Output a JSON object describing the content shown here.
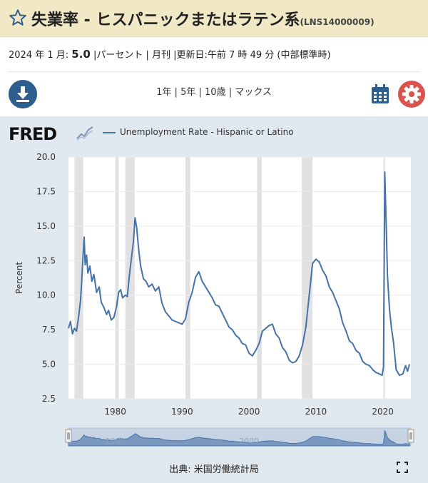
{
  "header": {
    "title": "失業率 - ヒスパニックまたはラテン系",
    "series_code": "(LNS14000009)"
  },
  "meta": {
    "date": "2024 年 1 月: ",
    "value": "5.0",
    "units": " |パーセント | 月刊 |",
    "updated": "更新日:午前 7 時 49 分 (中部標準時)"
  },
  "ranges": {
    "y1": "1年",
    "y5": "5年",
    "y10": "10歳",
    "max": "マックス"
  },
  "chart": {
    "logo": "FRED",
    "legend": "Unemployment Rate - Hispanic or Latino",
    "source": "出典: 米国労働統計局"
  },
  "chart_data": {
    "type": "line",
    "series": [
      {
        "name": "Unemployment Rate - Hispanic or Latino",
        "points": [
          [
            1973.0,
            7.6
          ],
          [
            1973.3,
            8.1
          ],
          [
            1973.6,
            7.2
          ],
          [
            1973.9,
            7.6
          ],
          [
            1974.2,
            7.4
          ],
          [
            1974.5,
            8.4
          ],
          [
            1974.8,
            9.6
          ],
          [
            1975.0,
            11.2
          ],
          [
            1975.2,
            13.0
          ],
          [
            1975.35,
            14.2
          ],
          [
            1975.5,
            12.2
          ],
          [
            1975.7,
            12.9
          ],
          [
            1975.9,
            11.6
          ],
          [
            1976.2,
            12.1
          ],
          [
            1976.5,
            11.0
          ],
          [
            1976.8,
            11.5
          ],
          [
            1977.2,
            10.2
          ],
          [
            1977.6,
            10.6
          ],
          [
            1977.9,
            9.5
          ],
          [
            1978.3,
            9.1
          ],
          [
            1978.7,
            8.6
          ],
          [
            1979.0,
            8.9
          ],
          [
            1979.4,
            8.2
          ],
          [
            1979.8,
            8.4
          ],
          [
            1980.2,
            9.2
          ],
          [
            1980.5,
            10.2
          ],
          [
            1980.8,
            10.4
          ],
          [
            1981.1,
            9.8
          ],
          [
            1981.5,
            10.0
          ],
          [
            1981.8,
            9.9
          ],
          [
            1982.1,
            11.4
          ],
          [
            1982.4,
            12.6
          ],
          [
            1982.7,
            13.8
          ],
          [
            1982.95,
            15.6
          ],
          [
            1983.2,
            14.9
          ],
          [
            1983.5,
            13.3
          ],
          [
            1983.8,
            12.1
          ],
          [
            1984.2,
            11.2
          ],
          [
            1984.6,
            11.0
          ],
          [
            1985.0,
            10.6
          ],
          [
            1985.5,
            10.8
          ],
          [
            1986.0,
            10.3
          ],
          [
            1986.5,
            10.6
          ],
          [
            1987.0,
            9.4
          ],
          [
            1987.5,
            8.8
          ],
          [
            1988.0,
            8.5
          ],
          [
            1988.5,
            8.2
          ],
          [
            1989.0,
            8.1
          ],
          [
            1989.5,
            8.0
          ],
          [
            1990.0,
            7.9
          ],
          [
            1990.5,
            8.3
          ],
          [
            1991.0,
            9.5
          ],
          [
            1991.5,
            10.2
          ],
          [
            1992.0,
            11.3
          ],
          [
            1992.5,
            11.7
          ],
          [
            1993.0,
            11.0
          ],
          [
            1993.5,
            10.6
          ],
          [
            1994.0,
            10.2
          ],
          [
            1994.5,
            9.8
          ],
          [
            1995.0,
            9.3
          ],
          [
            1995.5,
            9.2
          ],
          [
            1996.0,
            8.7
          ],
          [
            1996.5,
            8.2
          ],
          [
            1997.0,
            7.7
          ],
          [
            1997.5,
            7.5
          ],
          [
            1998.0,
            7.1
          ],
          [
            1998.5,
            6.9
          ],
          [
            1999.0,
            6.5
          ],
          [
            1999.5,
            6.4
          ],
          [
            2000.0,
            5.8
          ],
          [
            2000.5,
            5.6
          ],
          [
            2001.0,
            6.0
          ],
          [
            2001.5,
            6.5
          ],
          [
            2002.0,
            7.4
          ],
          [
            2002.5,
            7.6
          ],
          [
            2003.0,
            7.8
          ],
          [
            2003.5,
            7.9
          ],
          [
            2004.0,
            7.2
          ],
          [
            2004.5,
            6.9
          ],
          [
            2005.0,
            6.2
          ],
          [
            2005.5,
            5.9
          ],
          [
            2006.0,
            5.3
          ],
          [
            2006.5,
            5.1
          ],
          [
            2007.0,
            5.2
          ],
          [
            2007.5,
            5.6
          ],
          [
            2008.0,
            6.4
          ],
          [
            2008.5,
            7.7
          ],
          [
            2009.0,
            10.0
          ],
          [
            2009.5,
            12.3
          ],
          [
            2010.0,
            12.6
          ],
          [
            2010.5,
            12.4
          ],
          [
            2011.0,
            11.8
          ],
          [
            2011.5,
            11.4
          ],
          [
            2012.0,
            10.6
          ],
          [
            2012.5,
            10.2
          ],
          [
            2013.0,
            9.6
          ],
          [
            2013.5,
            9.0
          ],
          [
            2014.0,
            8.0
          ],
          [
            2014.5,
            7.4
          ],
          [
            2015.0,
            6.7
          ],
          [
            2015.5,
            6.5
          ],
          [
            2016.0,
            6.0
          ],
          [
            2016.5,
            5.8
          ],
          [
            2017.0,
            5.2
          ],
          [
            2017.5,
            5.0
          ],
          [
            2018.0,
            4.9
          ],
          [
            2018.5,
            4.6
          ],
          [
            2019.0,
            4.4
          ],
          [
            2019.5,
            4.3
          ],
          [
            2019.9,
            4.2
          ],
          [
            2020.1,
            4.8
          ],
          [
            2020.3,
            18.9
          ],
          [
            2020.5,
            15.3
          ],
          [
            2020.7,
            11.4
          ],
          [
            2021.0,
            9.0
          ],
          [
            2021.3,
            7.6
          ],
          [
            2021.6,
            6.6
          ],
          [
            2022.0,
            4.6
          ],
          [
            2022.5,
            4.2
          ],
          [
            2023.0,
            4.3
          ],
          [
            2023.4,
            4.9
          ],
          [
            2023.7,
            4.5
          ],
          [
            2024.0,
            5.0
          ]
        ]
      }
    ],
    "recessions": [
      [
        1973.9,
        1975.2
      ],
      [
        1980.0,
        1980.5
      ],
      [
        1981.5,
        1982.9
      ],
      [
        1990.5,
        1991.2
      ],
      [
        2001.2,
        2001.9
      ],
      [
        2007.9,
        2009.5
      ],
      [
        2020.1,
        2020.3
      ]
    ],
    "xlim": [
      1973.0,
      2024.2
    ],
    "ylim": [
      2.5,
      20.0
    ],
    "yticks": [
      "2.5",
      "5.0",
      "7.5",
      "10.0",
      "12.5",
      "15.0",
      "17.5",
      "20.0"
    ],
    "ytick_values": [
      2.5,
      5.0,
      7.5,
      10.0,
      12.5,
      15.0,
      17.5,
      20.0
    ],
    "xticks": [
      "1980",
      "1990",
      "2000",
      "2010",
      "2020"
    ],
    "xtick_values": [
      1980,
      1990,
      2000,
      2010,
      2020
    ],
    "ylabel": "Percent",
    "navigator_labels": [
      "1980",
      "2000"
    ],
    "navigator_label_values": [
      1980,
      2000
    ],
    "colors": {
      "line": "#4572a7",
      "recession": "#e1e1e1"
    }
  }
}
